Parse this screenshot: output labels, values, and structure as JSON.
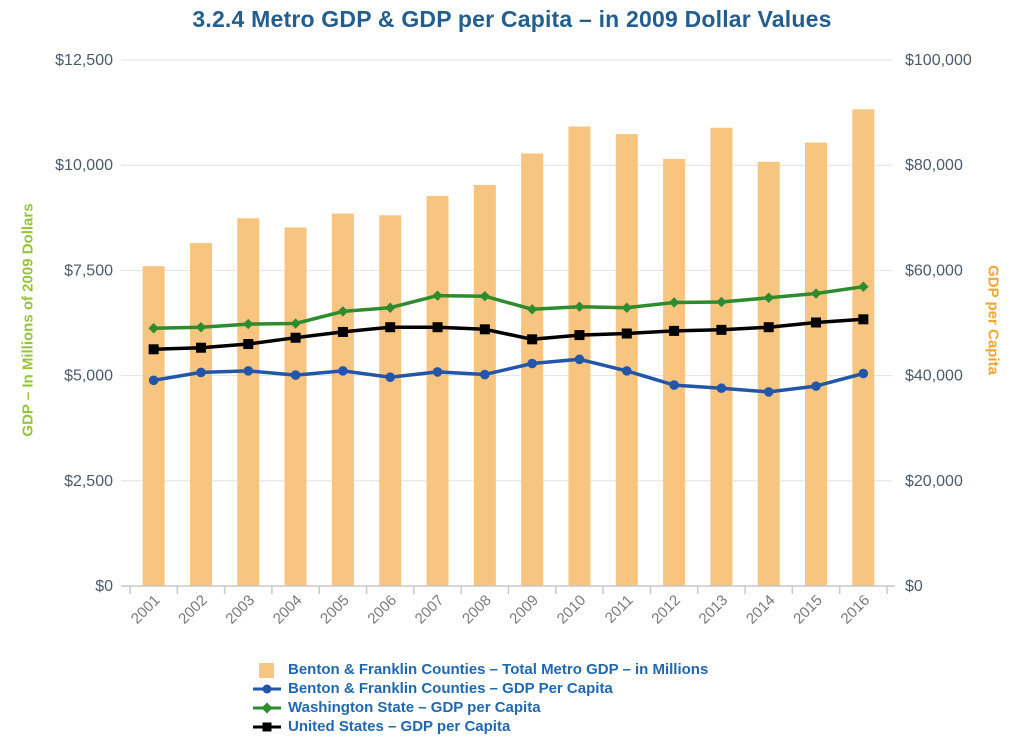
{
  "title": "3.2.4 Metro GDP & GDP per Capita – in 2009 Dollar Values",
  "colors": {
    "title_text": "#235E8E",
    "legend_text": "#2268AE",
    "bar_fill": "#F8C581",
    "blue_line": "#2356A8",
    "green_line": "#2E8B2E",
    "black_line": "#000000",
    "left_axis_title": "#97C33D",
    "right_axis_title": "#EFA632",
    "tick_label": "#4D5A6A",
    "year_label": "#7A7A7A",
    "gridline": "#E2E2E2",
    "axis_line": "#C8C8C8"
  },
  "chart_data": {
    "type": "combo-bar-line",
    "title": "3.2.4 Metro GDP & GDP per Capita – in 2009 Dollar Values",
    "categories": [
      "2001",
      "2002",
      "2003",
      "2004",
      "2005",
      "2006",
      "2007",
      "2008",
      "2009",
      "2010",
      "2011",
      "2012",
      "2013",
      "2014",
      "2015",
      "2016"
    ],
    "left_axis": {
      "title": "GDP – In Millions of 2009 Dollars",
      "ticks": [
        "$0",
        "$2,500",
        "$5,000",
        "$7,500",
        "$10,000",
        "$12,500"
      ],
      "range": [
        0,
        12500
      ]
    },
    "right_axis": {
      "title": "GDP per Capita",
      "ticks": [
        "$0",
        "$20,000",
        "$40,000",
        "$60,000",
        "$80,000",
        "$100,000"
      ],
      "range": [
        0,
        100000
      ]
    },
    "grid": true,
    "legend_position": "bottom",
    "series": [
      {
        "name": "Benton & Franklin Counties – Total Metro GDP – in Millions",
        "type": "bar",
        "axis": "left",
        "marker": "none",
        "color": "#F8C581",
        "values": [
          7600,
          8150,
          8740,
          8520,
          8850,
          8810,
          9270,
          9530,
          10280,
          10920,
          10740,
          10150,
          10890,
          10080,
          10540,
          11330
        ]
      },
      {
        "name": "Benton & Franklin Counties – GDP Per Capita",
        "type": "line",
        "axis": "right",
        "marker": "circle",
        "color": "#2356A8",
        "values": [
          39100,
          40600,
          40900,
          40100,
          40900,
          39700,
          40700,
          40200,
          42300,
          43100,
          40900,
          38200,
          37600,
          36900,
          38000,
          40400
        ]
      },
      {
        "name": "Washington State – GDP per Capita",
        "type": "line",
        "axis": "right",
        "marker": "diamond",
        "color": "#2E8B2E",
        "values": [
          49000,
          49200,
          49800,
          49900,
          52200,
          52900,
          55200,
          55100,
          52600,
          53100,
          52900,
          53900,
          54000,
          54800,
          55600,
          56900
        ]
      },
      {
        "name": "United States – GDP per Capita",
        "type": "line",
        "axis": "right",
        "marker": "square",
        "color": "#000000",
        "values": [
          45000,
          45300,
          46000,
          47200,
          48300,
          49200,
          49200,
          48800,
          46900,
          47700,
          48000,
          48500,
          48700,
          49200,
          50100,
          50700
        ]
      }
    ]
  }
}
